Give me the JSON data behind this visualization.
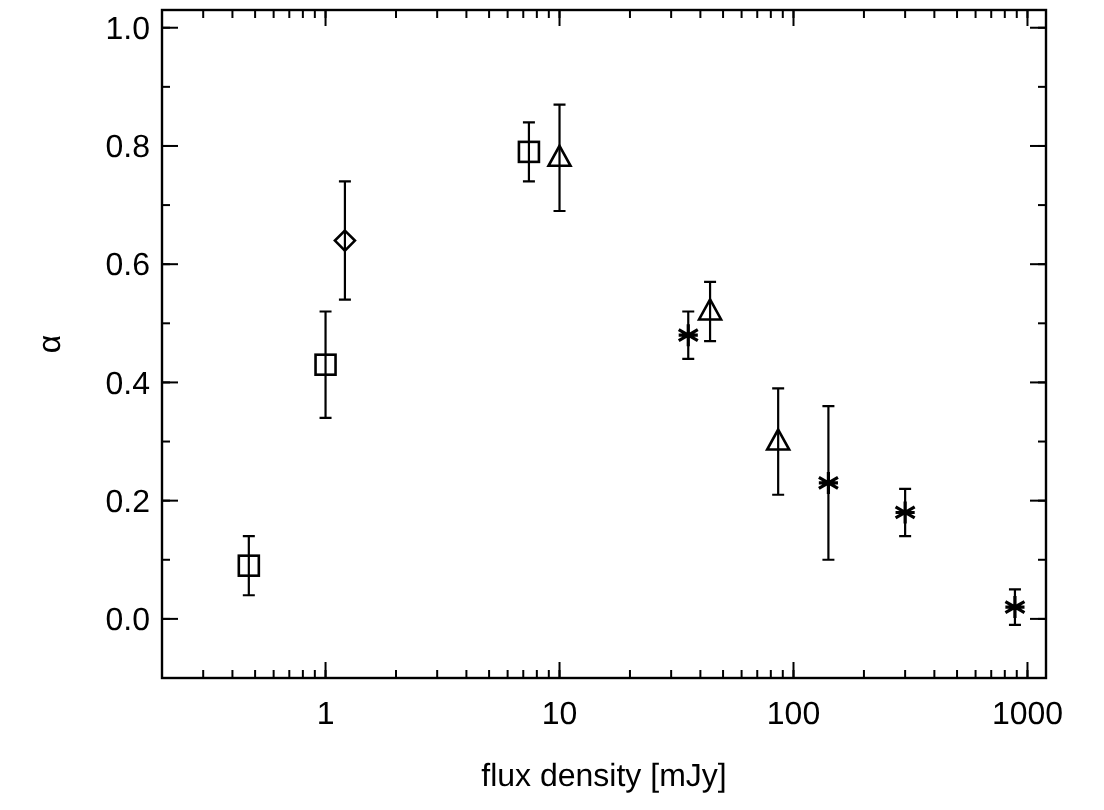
{
  "chart_data": {
    "type": "scatter",
    "xlabel": "flux density [mJy]",
    "ylabel": "α",
    "log": "x",
    "grid": false,
    "xlim": [
      0.2,
      1200
    ],
    "xticks": [
      1,
      10,
      100,
      1000
    ],
    "ylim": [
      -0.1,
      1.03
    ],
    "yticks": [
      {
        "value": 0,
        "label": "0.0"
      },
      {
        "value": 0.2,
        "label": "0.2"
      },
      {
        "value": 0.4,
        "label": "0.4"
      },
      {
        "value": 0.6,
        "label": "0.6"
      },
      {
        "value": 0.8,
        "label": "0.8"
      },
      {
        "value": 1,
        "label": "1.0"
      }
    ],
    "series": [
      {
        "color": "#000000",
        "marker": "square",
        "x": [
          0.47,
          1.0,
          7.4
        ],
        "values": [
          0.09,
          0.43,
          0.79
        ],
        "errors": [
          [
            0.04,
            0.14
          ],
          [
            0.34,
            0.52
          ],
          [
            0.74,
            0.84
          ]
        ]
      },
      {
        "color": "#000000",
        "marker": "diamond",
        "x": [
          1.21
        ],
        "values": [
          0.64
        ],
        "errors": [
          [
            0.54,
            0.74
          ]
        ]
      },
      {
        "color": "#000000",
        "marker": "triangle",
        "x": [
          10,
          44,
          86
        ],
        "values": [
          0.78,
          0.52,
          0.3
        ],
        "errors": [
          [
            0.69,
            0.87
          ],
          [
            0.47,
            0.57
          ],
          [
            0.21,
            0.39
          ]
        ]
      },
      {
        "color": "#000000",
        "marker": "cross",
        "x": [
          35.5,
          141,
          300,
          884
        ],
        "values": [
          0.48,
          0.23,
          0.18,
          0.02
        ],
        "errors": [
          [
            0.44,
            0.52
          ],
          [
            0.1,
            0.36
          ],
          [
            0.14,
            0.22
          ],
          [
            -0.01,
            0.05
          ]
        ]
      }
    ]
  }
}
